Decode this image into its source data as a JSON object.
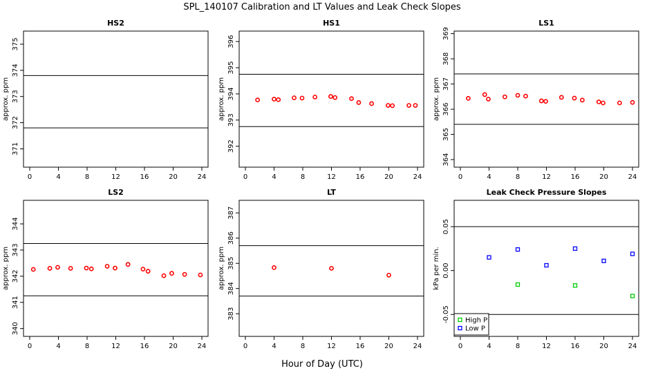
{
  "title": "SPL_140107  Calibration and LT Values and Leak Check Slopes",
  "xlabel": "Hour of Day (UTC)",
  "chart_data": [
    {
      "type": "scatter",
      "title": "HS2",
      "ylabel": "approx. ppm",
      "xlim": [
        0,
        24
      ],
      "ylim": [
        370.3,
        375.5
      ],
      "xticks": [
        0,
        4,
        8,
        12,
        16,
        20,
        24
      ],
      "yticks": [
        371,
        372,
        373,
        374,
        375
      ],
      "hlines": [
        371.8,
        373.8
      ],
      "series": []
    },
    {
      "type": "scatter",
      "title": "HS1",
      "ylabel": "approx. ppm",
      "xlim": [
        0,
        24
      ],
      "ylim": [
        391.2,
        396.4
      ],
      "xticks": [
        0,
        4,
        8,
        12,
        16,
        20,
        24
      ],
      "yticks": [
        392,
        393,
        394,
        395,
        396
      ],
      "hlines": [
        392.75,
        394.75
      ],
      "series": [
        {
          "color": "#ff0000",
          "marker": "circle",
          "x": [
            1.7,
            4.0,
            4.6,
            6.8,
            7.9,
            9.7,
            11.9,
            12.5,
            14.8,
            15.8,
            17.6,
            19.9,
            20.5,
            22.8,
            23.7
          ],
          "y": [
            393.77,
            393.8,
            393.78,
            393.85,
            393.84,
            393.88,
            393.9,
            393.86,
            393.82,
            393.67,
            393.63,
            393.56,
            393.55,
            393.56,
            393.56
          ]
        }
      ]
    },
    {
      "type": "scatter",
      "title": "LS1",
      "ylabel": "approx. ppm",
      "xlim": [
        0,
        24
      ],
      "ylim": [
        363.7,
        369.1
      ],
      "xticks": [
        0,
        4,
        8,
        12,
        16,
        20,
        24
      ],
      "yticks": [
        364,
        365,
        366,
        367,
        368,
        369
      ],
      "hlines": [
        365.4,
        367.4
      ],
      "series": [
        {
          "color": "#ff0000",
          "marker": "circle",
          "x": [
            1.1,
            3.4,
            3.9,
            6.2,
            8.0,
            9.1,
            11.3,
            11.9,
            14.1,
            15.9,
            17.0,
            19.3,
            19.9,
            22.2,
            24.0
          ],
          "y": [
            366.43,
            366.58,
            366.4,
            366.49,
            366.55,
            366.52,
            366.33,
            366.31,
            366.47,
            366.44,
            366.36,
            366.29,
            366.25,
            366.25,
            366.27
          ]
        }
      ]
    },
    {
      "type": "scatter",
      "title": "LS2",
      "ylabel": "approx. ppm",
      "xlim": [
        0,
        24
      ],
      "ylim": [
        339.7,
        344.9
      ],
      "xticks": [
        0,
        4,
        8,
        12,
        16,
        20,
        24
      ],
      "yticks": [
        340,
        341,
        342,
        343,
        344
      ],
      "hlines": [
        341.25,
        343.25
      ],
      "series": [
        {
          "color": "#ff0000",
          "marker": "circle",
          "x": [
            0.5,
            2.8,
            3.9,
            5.7,
            7.9,
            8.6,
            10.8,
            11.9,
            13.7,
            15.8,
            16.5,
            18.7,
            19.8,
            21.6,
            23.8
          ],
          "y": [
            342.26,
            342.3,
            342.34,
            342.3,
            342.31,
            342.28,
            342.38,
            342.31,
            342.45,
            342.27,
            342.19,
            342.02,
            342.11,
            342.07,
            342.05
          ]
        }
      ]
    },
    {
      "type": "scatter",
      "title": "LT",
      "ylabel": "approx. ppm",
      "xlim": [
        0,
        24
      ],
      "ylim": [
        382.1,
        387.5
      ],
      "xticks": [
        0,
        4,
        8,
        12,
        16,
        20,
        24
      ],
      "yticks": [
        383,
        384,
        385,
        386,
        387
      ],
      "hlines": [
        383.7,
        385.7
      ],
      "series": [
        {
          "color": "#ff0000",
          "marker": "circle",
          "x": [
            4.0,
            12.0,
            20.0
          ],
          "y": [
            384.83,
            384.8,
            384.53
          ]
        }
      ]
    },
    {
      "type": "scatter",
      "title": "Leak Check Pressure Slopes",
      "ylabel": "kPa per min.",
      "xlim": [
        0,
        24
      ],
      "ylim": [
        -0.075,
        0.08
      ],
      "xticks": [
        0,
        4,
        8,
        12,
        16,
        20,
        24
      ],
      "yticks": [
        -0.05,
        0.0,
        0.05
      ],
      "ytick_labels": [
        "-0.05",
        "0.00",
        "0.05"
      ],
      "hlines": [
        -0.05,
        0.05
      ],
      "legend_position": "bottom-left",
      "series": [
        {
          "name": "High P",
          "color": "#00cc00",
          "marker": "square",
          "x": [
            8.0,
            16.0,
            24.0
          ],
          "y": [
            -0.016,
            -0.017,
            -0.029
          ]
        },
        {
          "name": "Low P",
          "color": "#0000ff",
          "marker": "square",
          "x": [
            4.0,
            8.0,
            12.0,
            16.0,
            20.0,
            24.0
          ],
          "y": [
            0.015,
            0.024,
            0.006,
            0.025,
            0.011,
            0.019
          ]
        }
      ]
    }
  ]
}
